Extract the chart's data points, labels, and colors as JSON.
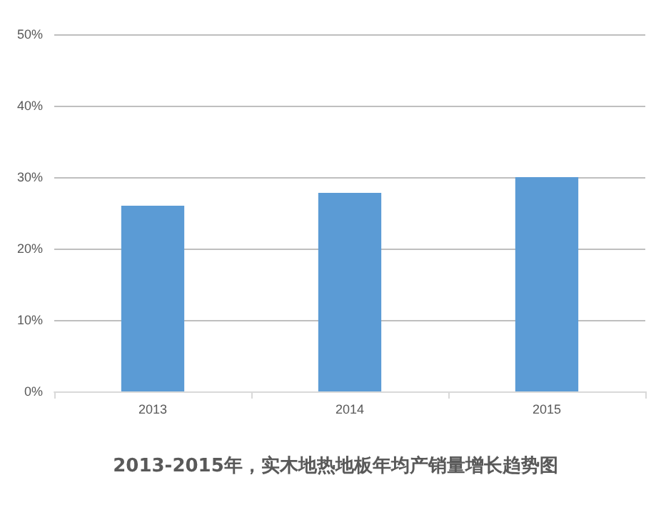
{
  "chart_data": {
    "type": "bar",
    "title": "2013-2015年，实木地热地板年均产销量增长趋势图",
    "categories": [
      "2013",
      "2014",
      "2015"
    ],
    "values": [
      26,
      27.8,
      30
    ],
    "color": "#5b9bd5",
    "ylim": [
      0,
      50
    ],
    "yticks": [
      {
        "value": 0,
        "label": "0%"
      },
      {
        "value": 10,
        "label": "10%"
      },
      {
        "value": 20,
        "label": "20%"
      },
      {
        "value": 30,
        "label": "30%"
      },
      {
        "value": 40,
        "label": "40%"
      },
      {
        "value": 50,
        "label": "50%"
      }
    ],
    "grid": "y"
  }
}
